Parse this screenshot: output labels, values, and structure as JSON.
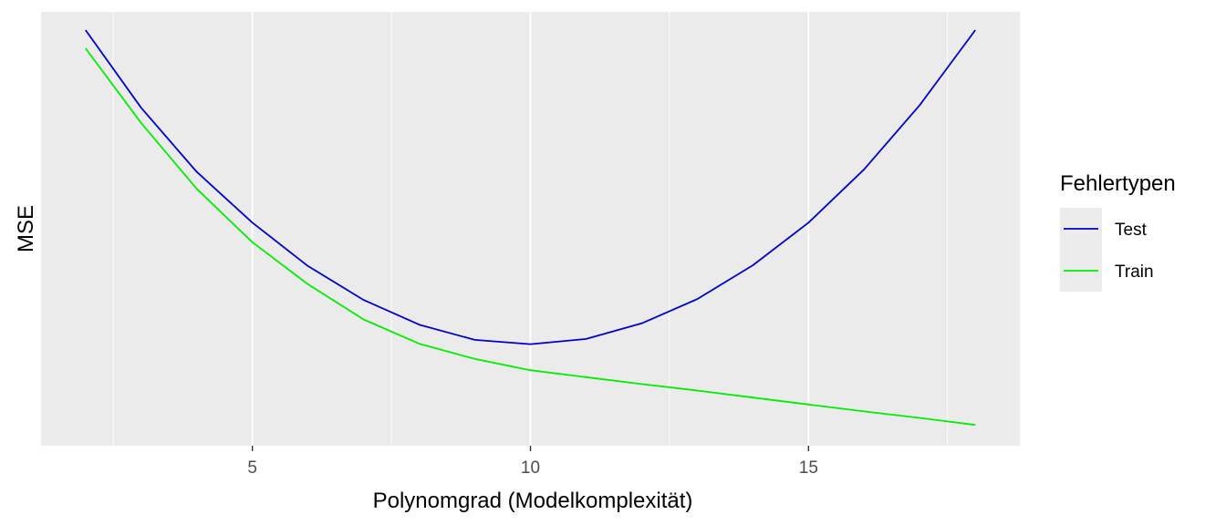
{
  "chart_data": {
    "type": "line",
    "title": "",
    "xlabel": "Polynomgrad (Modelkomplexität)",
    "ylabel": "MSE",
    "xlim": [
      1.2,
      18.8
    ],
    "ylim": [
      0,
      1
    ],
    "x_ticks": [
      5,
      10,
      15
    ],
    "x_tick_labels": [
      "5",
      "10",
      "15"
    ],
    "y_ticks_shown": false,
    "grid": true,
    "legend": {
      "title": "Fehlertypen",
      "position": "right"
    },
    "series": [
      {
        "name": "Test",
        "color": "#0000CD",
        "x": [
          2,
          3,
          4,
          5,
          6,
          7,
          8,
          9,
          10,
          11,
          12,
          13,
          14,
          15,
          16,
          17,
          18
        ],
        "y": [
          0.958,
          0.779,
          0.631,
          0.514,
          0.414,
          0.336,
          0.279,
          0.244,
          0.234,
          0.246,
          0.282,
          0.338,
          0.416,
          0.514,
          0.637,
          0.785,
          0.958
        ]
      },
      {
        "name": "Train",
        "color": "#00EE00",
        "x": [
          2,
          3,
          4,
          5,
          6,
          7,
          8,
          9,
          10,
          11,
          12,
          13,
          14,
          15,
          16,
          17,
          18
        ],
        "y": [
          0.916,
          0.744,
          0.592,
          0.469,
          0.372,
          0.291,
          0.235,
          0.2,
          0.174,
          0.158,
          0.142,
          0.127,
          0.111,
          0.095,
          0.079,
          0.064,
          0.048
        ]
      }
    ]
  }
}
